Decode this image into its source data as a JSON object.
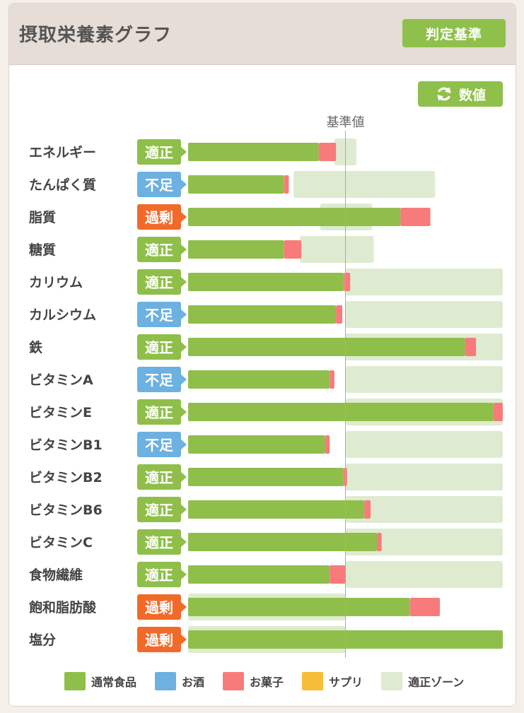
{
  "header": {
    "title": "摂取栄養素グラフ",
    "criteria_button": "判定基準",
    "values_button": "数値"
  },
  "colors": {
    "normal_food": "#8fbf4a",
    "alcohol": "#6cb1e0",
    "sweets": "#f77b7b",
    "supplement": "#f7bd38",
    "zone": "#dfebd0",
    "status_ok": "#8fbf4a",
    "status_low": "#6cb1e0",
    "status_over": "#f26a2a"
  },
  "chart_data": {
    "type": "bar",
    "orientation": "horizontal",
    "stacked": true,
    "reference_label": "基準値",
    "reference_value": 100,
    "value_unit": "% of 基準値",
    "xlim": [
      0,
      200
    ],
    "status_labels": {
      "ok": "適正",
      "low": "不足",
      "over": "過剰"
    },
    "rows": [
      {
        "name": "エネルギー",
        "status": "ok",
        "normal": 83,
        "sweets": 11,
        "zone": [
          93,
          107
        ]
      },
      {
        "name": "たんぱく質",
        "status": "low",
        "normal": 61,
        "sweets": 3,
        "zone": [
          67,
          157
        ]
      },
      {
        "name": "脂質",
        "status": "over",
        "normal": 135,
        "sweets": 19,
        "zone": [
          84,
          117
        ]
      },
      {
        "name": "糖質",
        "status": "ok",
        "normal": 61,
        "sweets": 11,
        "zone": [
          71,
          118
        ]
      },
      {
        "name": "カリウム",
        "status": "ok",
        "normal": 99,
        "sweets": 4,
        "zone": [
          100,
          200
        ]
      },
      {
        "name": "カルシウム",
        "status": "low",
        "normal": 94,
        "sweets": 4,
        "zone": [
          100,
          200
        ]
      },
      {
        "name": "鉄",
        "status": "ok",
        "normal": 176,
        "sweets": 7,
        "zone": [
          100,
          200
        ]
      },
      {
        "name": "ビタミンA",
        "status": "low",
        "normal": 90,
        "sweets": 3,
        "zone": [
          100,
          200
        ]
      },
      {
        "name": "ビタミンE",
        "status": "ok",
        "normal": 194,
        "sweets": 6,
        "zone": [
          100,
          200
        ]
      },
      {
        "name": "ビタミンB1",
        "status": "low",
        "normal": 87,
        "sweets": 3,
        "zone": [
          100,
          200
        ]
      },
      {
        "name": "ビタミンB2",
        "status": "ok",
        "normal": 99,
        "sweets": 2,
        "zone": [
          100,
          200
        ]
      },
      {
        "name": "ビタミンB6",
        "status": "ok",
        "normal": 112,
        "sweets": 4,
        "zone": [
          100,
          200
        ]
      },
      {
        "name": "ビタミンC",
        "status": "ok",
        "normal": 120,
        "sweets": 3,
        "zone": [
          100,
          200
        ]
      },
      {
        "name": "食物繊維",
        "status": "ok",
        "normal": 90,
        "sweets": 10,
        "zone": [
          100,
          200
        ]
      },
      {
        "name": "飽和脂肪酸",
        "status": "over",
        "normal": 141,
        "sweets": 19,
        "zone": [
          0,
          100
        ]
      },
      {
        "name": "塩分",
        "status": "over",
        "normal": 200,
        "sweets": 0,
        "zone": [
          0,
          100
        ]
      }
    ]
  },
  "legend": {
    "normal_food": "通常食品",
    "alcohol": "お酒",
    "sweets": "お菓子",
    "supplement": "サプリ",
    "zone": "適正ゾーン"
  }
}
